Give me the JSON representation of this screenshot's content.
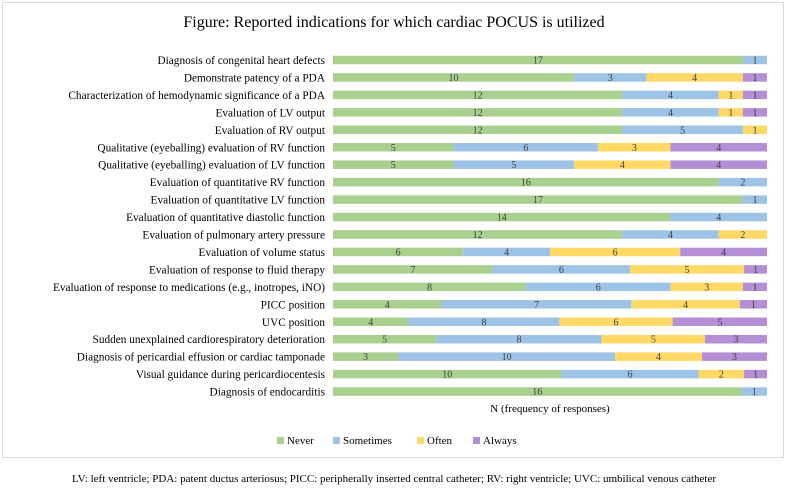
{
  "title": "Figure: Reported indications for which cardiac POCUS is utilized",
  "footnote": "LV: left ventricle; PDA: patent ductus arteriosus; PICC: peripherally inserted central catheter; RV: right ventricle; UVC: umbilical venous catheter",
  "chart_data": {
    "type": "bar",
    "orientation": "horizontal",
    "stacked": true,
    "title": "Figure: Reported indications for which cardiac POCUS is utilized",
    "xlabel": "N (frequency of responses)",
    "ylabel": "",
    "legend_position": "bottom",
    "grid": false,
    "categories": [
      "Diagnosis of congenital heart defects",
      "Demonstrate patency of a PDA",
      "Characterization of hemodynamic significance of a PDA",
      "Evaluation of LV output",
      "Evaluation of RV output",
      "Qualitative (eyeballing) evaluation of RV function",
      "Qualitative (eyeballing) evaluation of LV function",
      "Evaluation of quantitative RV function",
      "Evaluation of quantitative LV function",
      "Evaluation of quantitative diastolic function",
      "Evaluation of pulmonary artery pressure",
      "Evaluation of volume status",
      "Evaluation of response to fluid therapy",
      "Evaluation of response to medications (e.g., inotropes, iNO)",
      "PICC position",
      "UVC position",
      "Sudden unexplained cardiorespiratory deterioration",
      "Diagnosis of pericardial effusion or cardiac tamponade",
      "Visual guidance during pericardiocentesis",
      "Diagnosis of endocarditis"
    ],
    "series": [
      {
        "name": "Never",
        "color": "#a9d08e",
        "values": [
          17,
          10,
          12,
          12,
          12,
          5,
          5,
          16,
          17,
          14,
          12,
          6,
          7,
          8,
          4,
          4,
          5,
          3,
          10,
          16
        ]
      },
      {
        "name": "Sometimes",
        "color": "#9dc3e6",
        "values": [
          1,
          3,
          4,
          4,
          5,
          6,
          5,
          2,
          1,
          4,
          4,
          4,
          6,
          6,
          7,
          8,
          8,
          10,
          6,
          1
        ]
      },
      {
        "name": "Often",
        "color": "#ffd966",
        "values": [
          0,
          4,
          1,
          1,
          1,
          3,
          4,
          0,
          0,
          0,
          2,
          6,
          5,
          3,
          4,
          6,
          5,
          4,
          2,
          0
        ]
      },
      {
        "name": "Always",
        "color": "#b48fd6",
        "values": [
          0,
          1,
          1,
          1,
          0,
          4,
          4,
          0,
          0,
          0,
          0,
          4,
          1,
          1,
          1,
          5,
          3,
          3,
          1,
          0
        ]
      }
    ]
  }
}
